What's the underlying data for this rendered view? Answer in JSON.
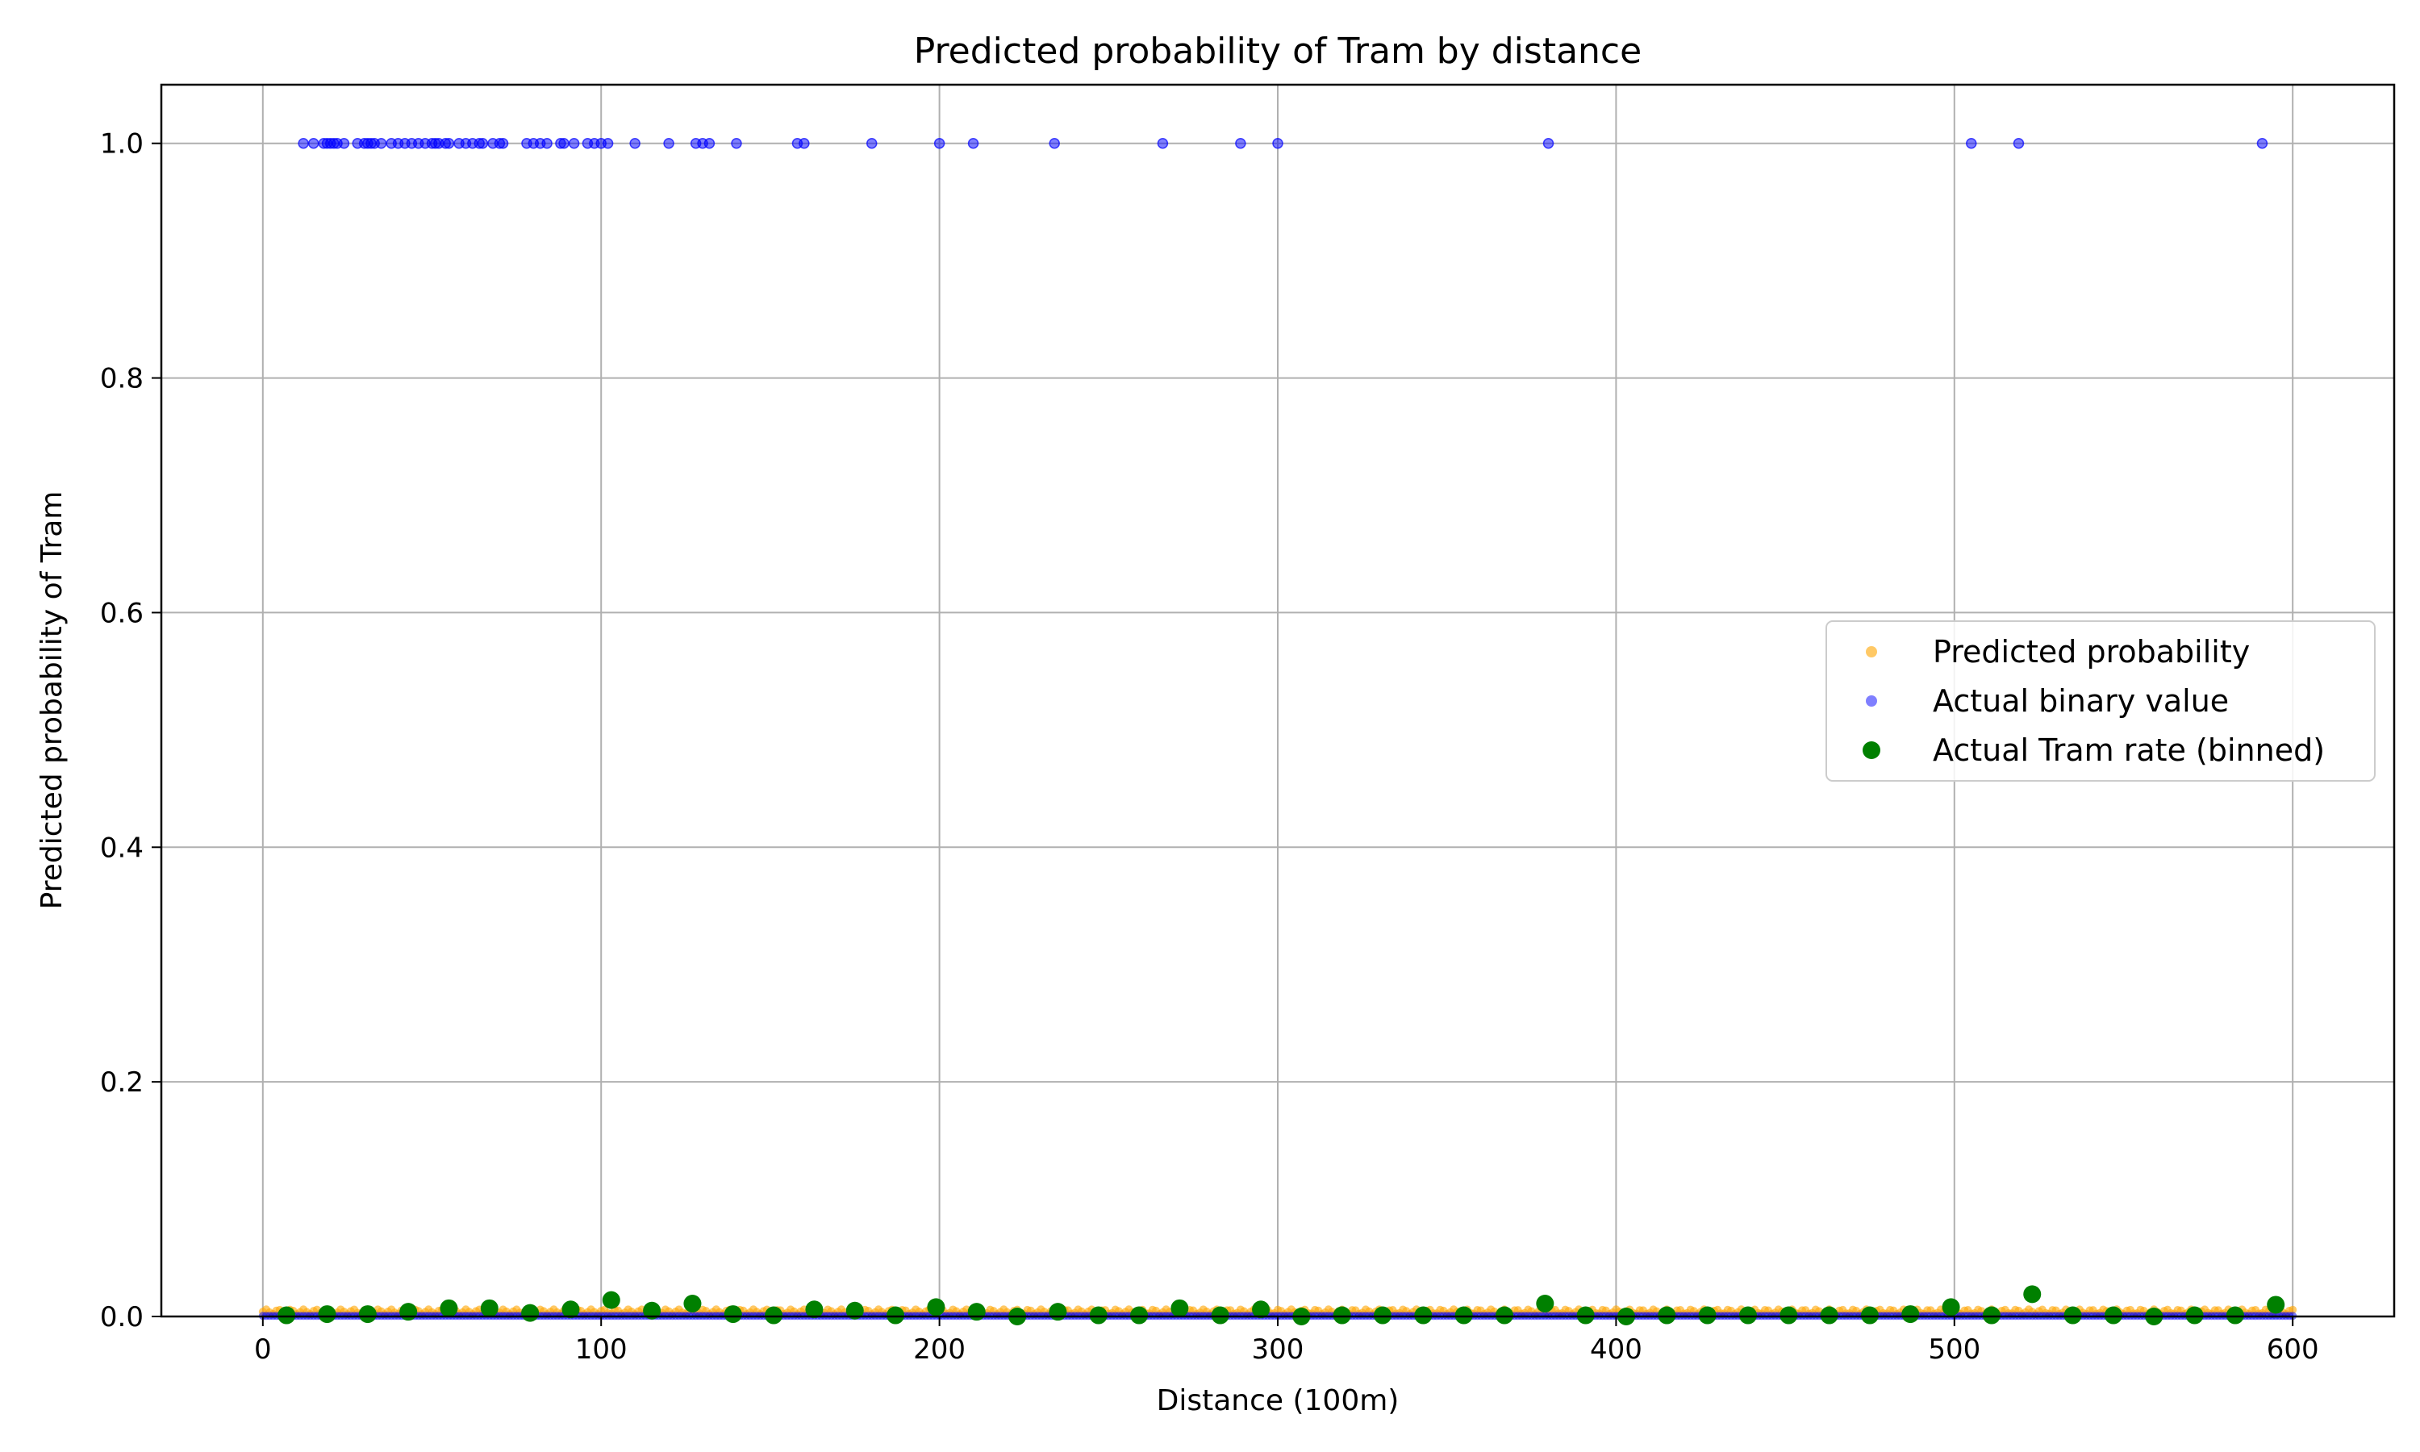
{
  "chart_data": {
    "type": "scatter",
    "title": "Predicted probability of Tram by distance",
    "xlabel": "Distance (100m)",
    "ylabel": "Predicted probability of Tram",
    "xlim": [
      -30,
      630
    ],
    "ylim": [
      0,
      1.05
    ],
    "xticks": [
      0,
      100,
      200,
      300,
      400,
      500,
      600
    ],
    "yticks": [
      0.0,
      0.2,
      0.4,
      0.6,
      0.8,
      1.0
    ],
    "xtick_labels": [
      "0",
      "100",
      "200",
      "300",
      "400",
      "500",
      "600"
    ],
    "ytick_labels": [
      "0.0",
      "0.2",
      "0.4",
      "0.6",
      "0.8",
      "1.0"
    ],
    "grid": true,
    "legend_position": "center-right",
    "series": [
      {
        "name": "Predicted probability",
        "color": "#FFA500",
        "alpha": 0.6,
        "marker": "small-circle",
        "x_range": [
          0,
          600
        ],
        "y_range": [
          0.002,
          0.006
        ],
        "description_count": 600
      },
      {
        "name": "Actual binary value",
        "color": "#0000FF",
        "alpha": 0.5,
        "marker": "small-circle",
        "x": [
          12,
          15,
          18,
          19,
          20,
          21,
          22,
          24,
          28,
          30,
          31,
          32,
          33,
          35,
          38,
          40,
          42,
          44,
          46,
          48,
          50,
          51,
          52,
          54,
          55,
          58,
          60,
          62,
          64,
          65,
          68,
          70,
          71,
          78,
          80,
          82,
          84,
          88,
          89,
          92,
          96,
          98,
          100,
          102,
          110,
          120,
          128,
          130,
          132,
          140,
          158,
          160,
          180,
          200,
          210,
          234,
          266,
          289,
          300,
          380,
          505,
          519,
          591
        ],
        "y_value": 1.0,
        "zero_x_range": [
          0,
          600
        ]
      },
      {
        "name": "Actual Tram rate (binned)",
        "color": "#008000",
        "alpha": 1.0,
        "marker": "large-circle",
        "x": [
          7,
          19,
          31,
          43,
          55,
          67,
          79,
          91,
          103,
          115,
          127,
          139,
          151,
          163,
          175,
          187,
          199,
          211,
          223,
          235,
          247,
          259,
          271,
          283,
          295,
          307,
          319,
          331,
          343,
          355,
          367,
          379,
          391,
          403,
          415,
          427,
          439,
          451,
          463,
          475,
          487,
          499,
          511,
          523,
          535,
          547,
          559,
          571,
          583,
          595
        ],
        "y": [
          0.001,
          0.002,
          0.002,
          0.004,
          0.007,
          0.007,
          0.003,
          0.006,
          0.014,
          0.005,
          0.011,
          0.002,
          0.001,
          0.006,
          0.005,
          0.001,
          0.008,
          0.004,
          0.0,
          0.004,
          0.001,
          0.001,
          0.007,
          0.001,
          0.006,
          0.0,
          0.001,
          0.001,
          0.001,
          0.001,
          0.001,
          0.011,
          0.001,
          0.0,
          0.001,
          0.001,
          0.001,
          0.001,
          0.001,
          0.001,
          0.002,
          0.008,
          0.001,
          0.019,
          0.001,
          0.001,
          0.0,
          0.001,
          0.001,
          0.01
        ]
      }
    ]
  }
}
